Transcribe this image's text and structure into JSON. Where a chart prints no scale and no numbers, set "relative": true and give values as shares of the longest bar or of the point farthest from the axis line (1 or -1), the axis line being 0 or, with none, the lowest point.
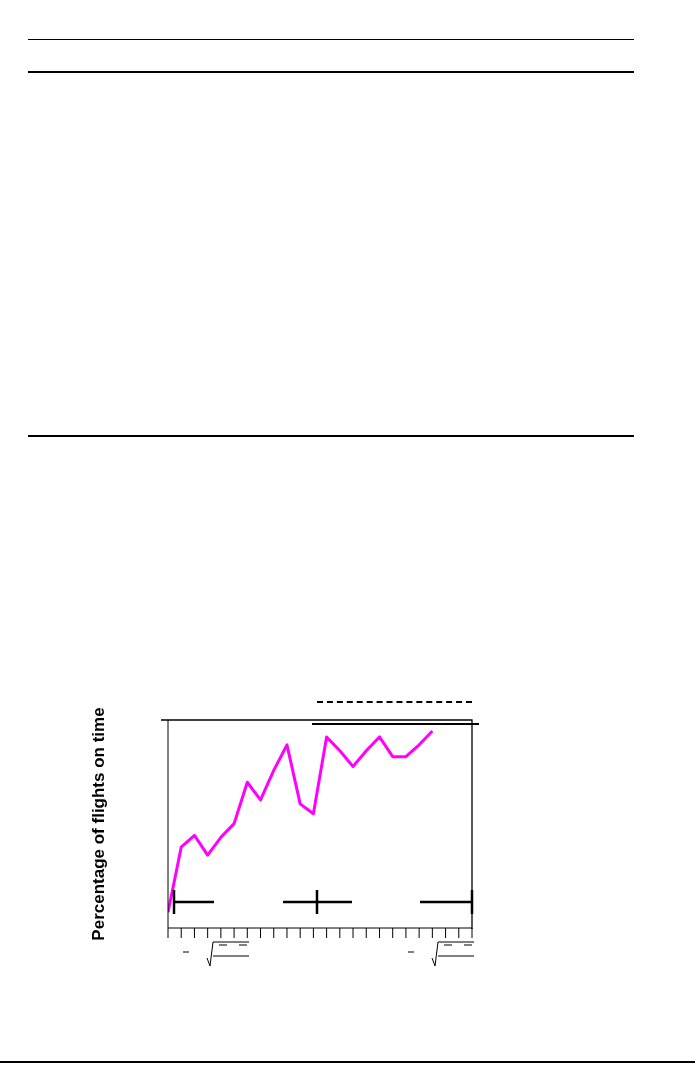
{
  "chart_data": {
    "type": "line",
    "ylabel": "Percentage of flights on time",
    "relative": true,
    "marker": "none",
    "categories": [
      null,
      null,
      null,
      null,
      null,
      null,
      null,
      null,
      null,
      null,
      null,
      null,
      null,
      null,
      null,
      null,
      null,
      null,
      null,
      null,
      null,
      null,
      null,
      null
    ],
    "series": [
      {
        "color": "#ff00ff",
        "values": [
          0.08,
          0.41,
          0.47,
          0.37,
          0.46,
          0.53,
          0.74,
          0.65,
          0.8,
          0.93,
          0.63,
          0.58,
          0.97,
          0.9,
          0.82,
          0.9,
          0.97,
          0.87,
          0.87,
          0.93,
          1.0,
          null,
          null,
          null
        ]
      }
    ]
  }
}
